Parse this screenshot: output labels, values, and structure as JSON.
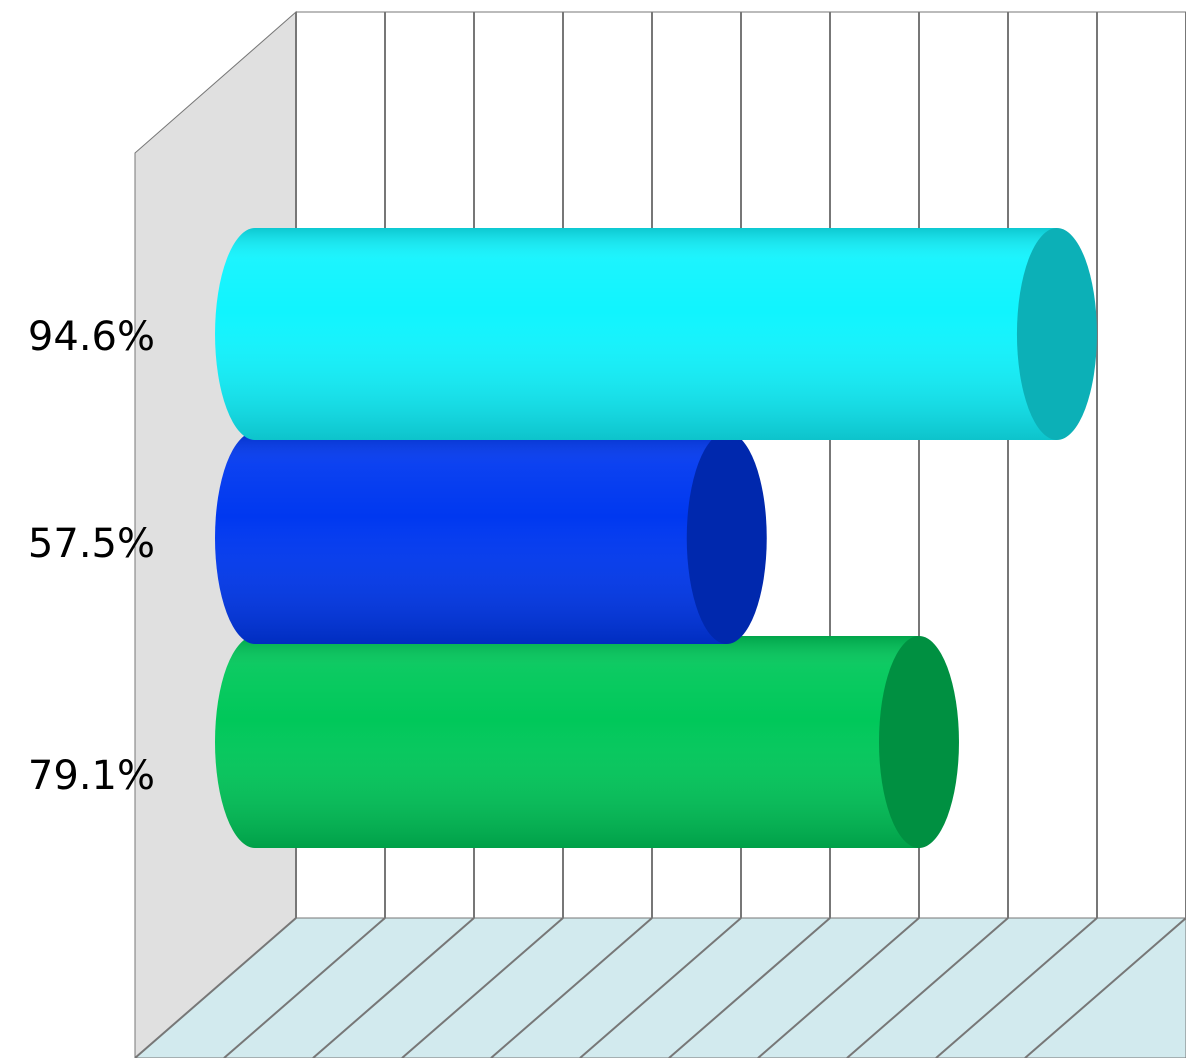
{
  "chart_data": {
    "type": "bar3d",
    "orientation": "horizontal",
    "categories": [
      "94.6%",
      "57.5%",
      "79.1%"
    ],
    "values": [
      94.6,
      57.5,
      79.1
    ],
    "colors": [
      "#10f4fe",
      "#0038f0",
      "#00c85a"
    ],
    "xlim": [
      0,
      100
    ],
    "xticks": [
      0,
      10,
      20,
      30,
      40,
      50,
      60,
      70,
      80,
      90,
      100
    ],
    "grid": true
  }
}
